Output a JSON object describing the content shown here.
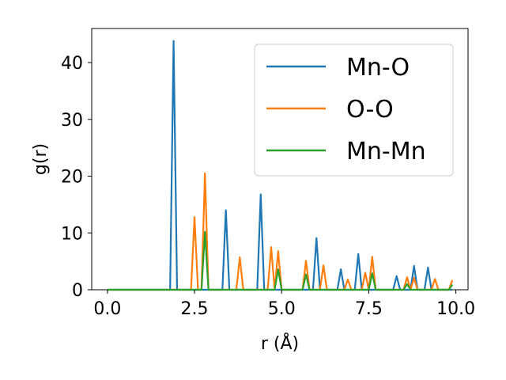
{
  "chart_data": {
    "type": "line",
    "title": "",
    "xlabel": "r (Å)",
    "ylabel": "g(r)",
    "xlim": [
      -0.45,
      10.35
    ],
    "ylim": [
      0,
      46
    ],
    "xticks": [
      0.0,
      2.5,
      5.0,
      7.5,
      10.0
    ],
    "xtick_labels": [
      "0.0",
      "2.5",
      "5.0",
      "7.5",
      "10.0"
    ],
    "yticks": [
      0,
      10,
      20,
      30,
      40
    ],
    "ytick_labels": [
      "0",
      "10",
      "20",
      "30",
      "40"
    ],
    "grid": false,
    "legend_position": "top-right",
    "series": [
      {
        "name": "Mn-O",
        "color": "#1f77b4",
        "x": [
          0.0,
          1.8,
          1.9,
          2.0,
          3.3,
          3.4,
          3.5,
          4.3,
          4.4,
          4.5,
          5.9,
          6.0,
          6.1,
          6.6,
          6.7,
          6.8,
          7.1,
          7.2,
          7.3,
          8.2,
          8.3,
          8.4,
          8.7,
          8.8,
          8.9,
          9.1,
          9.2,
          9.3,
          9.9
        ],
        "y": [
          0.0,
          0.0,
          43.8,
          0.0,
          0.0,
          14.0,
          0.0,
          0.0,
          16.8,
          0.0,
          0.0,
          9.1,
          0.0,
          0.0,
          3.6,
          0.0,
          0.0,
          6.3,
          0.0,
          0.0,
          2.4,
          0.0,
          0.0,
          4.2,
          0.0,
          0.0,
          3.9,
          0.0,
          0.0
        ]
      },
      {
        "name": "O-O",
        "color": "#ff7f0e",
        "x": [
          0.0,
          2.4,
          2.5,
          2.6,
          2.7,
          2.8,
          2.9,
          3.7,
          3.8,
          3.9,
          4.6,
          4.7,
          4.8,
          4.9,
          5.0,
          5.6,
          5.7,
          5.8,
          6.1,
          6.2,
          6.3,
          6.8,
          6.9,
          7.0,
          7.3,
          7.4,
          7.5,
          7.6,
          7.7,
          8.5,
          8.6,
          8.7,
          8.8,
          8.9,
          9.3,
          9.4,
          9.5,
          9.8,
          9.9
        ],
        "y": [
          0.0,
          0.0,
          12.8,
          0.0,
          0.0,
          20.5,
          0.0,
          0.0,
          5.7,
          0.0,
          0.0,
          7.5,
          0.0,
          6.8,
          0.0,
          0.0,
          5.1,
          0.0,
          0.0,
          4.3,
          0.0,
          0.0,
          1.8,
          0.0,
          0.0,
          3.0,
          0.0,
          5.8,
          0.0,
          0.0,
          2.2,
          0.0,
          2.1,
          0.0,
          0.0,
          1.9,
          0.0,
          0.0,
          1.7
        ]
      },
      {
        "name": "Mn-Mn",
        "color": "#2ca02c",
        "x": [
          0.0,
          2.7,
          2.8,
          2.9,
          4.8,
          4.9,
          5.0,
          5.6,
          5.7,
          5.8,
          7.5,
          7.6,
          7.7,
          8.5,
          8.6,
          8.7,
          9.8,
          9.9
        ],
        "y": [
          0.0,
          0.0,
          10.2,
          0.0,
          0.0,
          3.6,
          0.0,
          0.0,
          2.7,
          0.0,
          0.0,
          2.9,
          0.0,
          0.0,
          1.0,
          0.0,
          0.0,
          0.9
        ]
      }
    ]
  }
}
